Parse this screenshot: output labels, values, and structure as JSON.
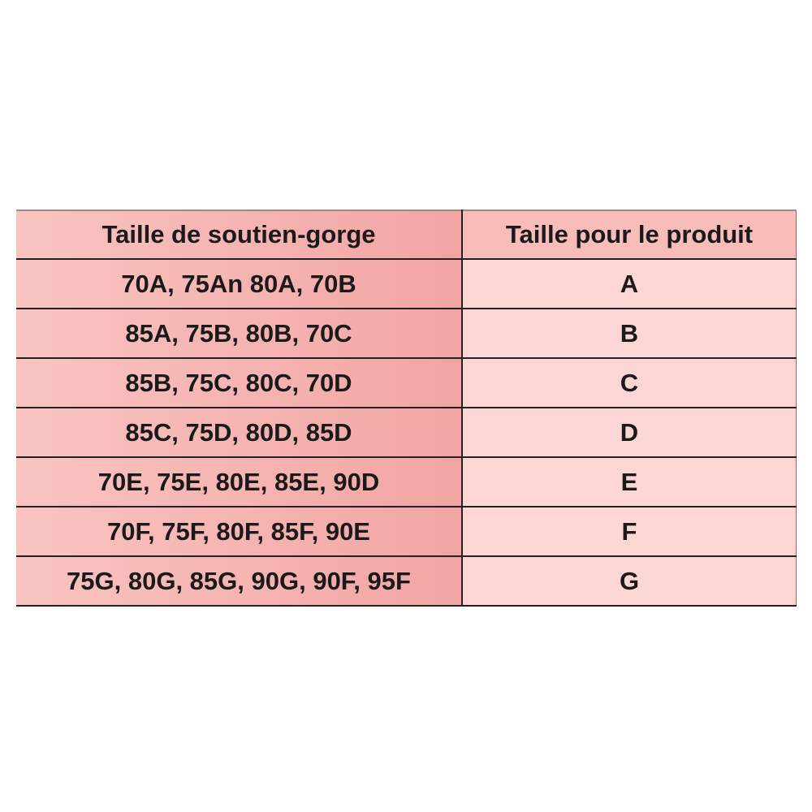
{
  "table": {
    "header": [
      "Taille de soutien-gorge",
      "Taille pour le produit"
    ],
    "rows": [
      [
        "70A, 75An 80A, 70B",
        "A"
      ],
      [
        "85A, 75B, 80B, 70C",
        "B"
      ],
      [
        "85B, 75C, 80C, 70D",
        "C"
      ],
      [
        "85C, 75D, 80D, 85D",
        "D"
      ],
      [
        "70E, 75E, 80E, 85E, 90D",
        "E"
      ],
      [
        "70F, 75F, 80F, 85F, 90E",
        "F"
      ],
      [
        "75G, 80G, 85G, 90G, 90F, 95F",
        "G"
      ]
    ]
  }
}
